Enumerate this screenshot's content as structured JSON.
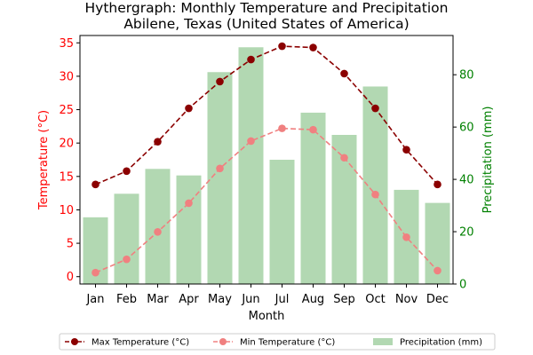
{
  "chart_data": {
    "type": "bar+line",
    "title": "Hythergraph: Monthly Temperature and Precipitation",
    "subtitle": "Abilene, Texas (United States of America)",
    "xlabel": "Month",
    "ylabel_left": "Temperature (°C)",
    "ylabel_right": "Precipitation (mm)",
    "categories": [
      "Jan",
      "Feb",
      "Mar",
      "Apr",
      "May",
      "Jun",
      "Jul",
      "Aug",
      "Sep",
      "Oct",
      "Nov",
      "Dec"
    ],
    "ylim_left": [
      -1.1,
      36.1
    ],
    "ylim_right": [
      0,
      95
    ],
    "yticks_left": [
      0,
      5,
      10,
      15,
      20,
      25,
      30,
      35
    ],
    "yticks_right": [
      0,
      20,
      40,
      60,
      80
    ],
    "series": [
      {
        "name": "Max Temperature (°C)",
        "kind": "line",
        "axis": "left",
        "color": "#8b0000",
        "values": [
          13.8,
          15.8,
          20.2,
          25.2,
          29.2,
          32.5,
          34.5,
          34.3,
          30.4,
          25.2,
          19.0,
          13.8
        ]
      },
      {
        "name": "Min Temperature (°C)",
        "kind": "line",
        "axis": "left",
        "color": "#f08080",
        "values": [
          0.6,
          2.6,
          6.7,
          11.0,
          16.2,
          20.3,
          22.2,
          22.0,
          17.8,
          12.3,
          5.9,
          0.9
        ]
      },
      {
        "name": "Precipitation (mm)",
        "kind": "bar",
        "axis": "right",
        "color": "#b2d8b2",
        "values": [
          25.5,
          34.5,
          44.0,
          41.5,
          81.0,
          90.5,
          47.5,
          65.5,
          57.0,
          75.5,
          36.0,
          31.0
        ]
      }
    ],
    "grid": false,
    "legend_position": "bottom-center"
  },
  "colors": {
    "left_axis": "#ff0000",
    "right_axis": "#008000"
  }
}
